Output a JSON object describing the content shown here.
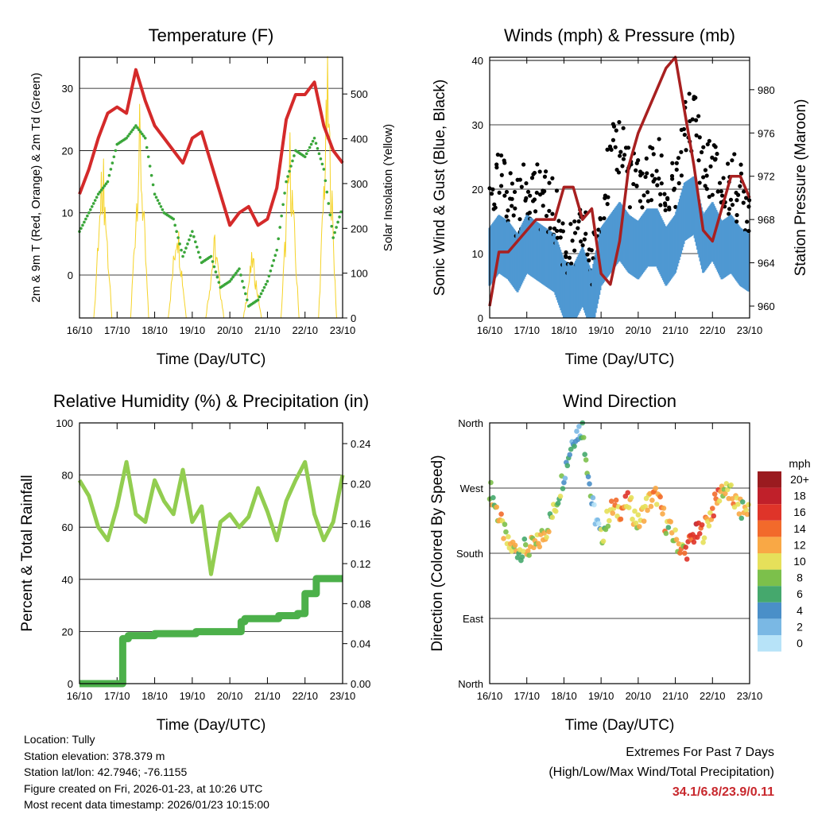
{
  "chart_data": [
    {
      "type": "line",
      "title": "Temperature (F)",
      "xlabel": "Time (Day/UTC)",
      "ylabel": "2m & 9m T (Red, Orange) & 2m Td (Green)",
      "ylabel_right": "Solar Insolation (Yellow)",
      "xticks": [
        "16/10",
        "17/10",
        "18/10",
        "19/10",
        "20/10",
        "21/10",
        "22/10",
        "23/10"
      ],
      "xlim": [
        0,
        7
      ],
      "ylim": [
        -6.9,
        35
      ],
      "yticks": [
        0,
        10,
        20,
        30
      ],
      "ylim_right": [
        0,
        582
      ],
      "yticks_right": [
        0,
        100,
        200,
        300,
        400,
        500
      ],
      "x": [
        0,
        0.25,
        0.5,
        0.75,
        1,
        1.25,
        1.5,
        1.75,
        2,
        2.25,
        2.5,
        2.75,
        3,
        3.25,
        3.5,
        3.75,
        4,
        4.25,
        4.5,
        4.75,
        5,
        5.25,
        5.5,
        5.75,
        6,
        6.25,
        6.5,
        6.75,
        7
      ],
      "series": [
        {
          "name": "Temperature",
          "color": "#d42a2a",
          "values": [
            13,
            17,
            22,
            26,
            27,
            26,
            33,
            28,
            24,
            22,
            20,
            18,
            22,
            23,
            18,
            13,
            8,
            10,
            11,
            8,
            9,
            14,
            25,
            29,
            29,
            31,
            24,
            20,
            18
          ]
        },
        {
          "name": "Dewpoint",
          "color": "#3aa63a",
          "values": [
            7,
            10,
            13,
            15,
            21,
            22,
            24,
            22,
            13,
            10,
            9,
            3,
            7,
            2,
            3,
            -2,
            -1,
            1,
            -5,
            -4,
            -1,
            4,
            15,
            20,
            19,
            22,
            17,
            6,
            11
          ]
        }
      ],
      "solar_peaks": [
        {
          "day": 0.62,
          "value": 400
        },
        {
          "day": 1.6,
          "value": 480
        },
        {
          "day": 2.6,
          "value": 250
        },
        {
          "day": 3.6,
          "value": 200
        },
        {
          "day": 4.6,
          "value": 160
        },
        {
          "day": 5.6,
          "value": 430
        },
        {
          "day": 6.6,
          "value": 590
        }
      ],
      "solar_color": "#f5d328"
    },
    {
      "type": "line",
      "title": "Winds (mph) & Pressure (mb)",
      "xlabel": "Time (Day/UTC)",
      "ylabel": "Sonic Wind & Gust (Blue, Black)",
      "ylabel_right": "Station Pressure (Maroon)",
      "xticks": [
        "16/10",
        "17/10",
        "18/10",
        "19/10",
        "20/10",
        "21/10",
        "22/10",
        "23/10"
      ],
      "xlim": [
        0,
        7
      ],
      "ylim": [
        0,
        40.5
      ],
      "yticks": [
        0,
        10,
        20,
        30,
        40
      ],
      "ylim_right": [
        958.9,
        983
      ],
      "yticks_right": [
        960,
        964,
        968,
        972,
        976,
        980
      ],
      "x": [
        0,
        0.25,
        0.5,
        0.75,
        1,
        1.25,
        1.5,
        1.75,
        2,
        2.25,
        2.5,
        2.75,
        3,
        3.25,
        3.5,
        3.75,
        4,
        4.25,
        4.5,
        4.75,
        5,
        5.25,
        5.5,
        5.75,
        6,
        6.25,
        6.5,
        6.75,
        7
      ],
      "series": [
        {
          "name": "Wind",
          "color": "#4f98d2",
          "values": [
            10,
            12,
            11,
            9,
            12,
            11,
            10,
            9,
            5,
            4,
            7,
            3,
            10,
            12,
            14,
            12,
            11,
            13,
            13,
            10,
            12,
            17,
            18,
            12,
            14,
            11,
            12,
            10,
            9
          ]
        },
        {
          "name": "Gust",
          "color": "#000000",
          "values": [
            19,
            21,
            19,
            17,
            21,
            19,
            18,
            16,
            11,
            10,
            14,
            8,
            18,
            24,
            28,
            22,
            20,
            22,
            23,
            18,
            20,
            30,
            31,
            22,
            24,
            19,
            21,
            19,
            17
          ]
        },
        {
          "name": "Pressure",
          "color": "#a82020",
          "values": [
            960,
            965,
            965,
            966,
            967,
            968,
            968,
            968,
            971,
            971,
            968,
            969,
            963,
            962,
            966,
            973,
            976,
            978,
            980,
            982,
            983,
            978,
            973,
            967,
            966,
            969,
            972,
            972,
            970
          ]
        }
      ]
    },
    {
      "type": "line",
      "title": "Relative Humidity (%) & Precipitation (in)",
      "xlabel": "Time (Day/UTC)",
      "ylabel": "Percent & Total Rainfall",
      "xticks": [
        "16/10",
        "17/10",
        "18/10",
        "19/10",
        "20/10",
        "21/10",
        "22/10",
        "23/10"
      ],
      "xlim": [
        0,
        7
      ],
      "ylim": [
        0,
        100
      ],
      "yticks": [
        0,
        20,
        40,
        60,
        80,
        100
      ],
      "ylim_right": [
        0,
        0.2607
      ],
      "yticks_right": [
        "0.00",
        "0.04",
        "0.08",
        "0.12",
        "0.16",
        "0.20",
        "0.24"
      ],
      "x": [
        0,
        0.25,
        0.5,
        0.75,
        1,
        1.25,
        1.5,
        1.75,
        2,
        2.25,
        2.5,
        2.75,
        3,
        3.25,
        3.5,
        3.75,
        4,
        4.25,
        4.5,
        4.75,
        5,
        5.25,
        5.5,
        5.75,
        6,
        6.25,
        6.5,
        6.75,
        7
      ],
      "series": [
        {
          "name": "Relative Humidity",
          "color": "#92cd50",
          "values": [
            78,
            72,
            60,
            55,
            68,
            85,
            65,
            62,
            78,
            70,
            65,
            82,
            62,
            68,
            42,
            62,
            65,
            60,
            64,
            75,
            66,
            55,
            70,
            78,
            85,
            65,
            55,
            62,
            80
          ]
        }
      ],
      "precip": {
        "color": "#4cb04a",
        "x": [
          0,
          1.1,
          1.15,
          1.3,
          2,
          3.1,
          3.8,
          4.3,
          4.4,
          5.3,
          5.8,
          6.0,
          6.3,
          7
        ],
        "values": [
          0,
          0,
          0.045,
          0.048,
          0.05,
          0.052,
          0.052,
          0.062,
          0.065,
          0.068,
          0.07,
          0.09,
          0.105,
          0.105
        ]
      }
    },
    {
      "type": "scatter",
      "title": "Wind Direction",
      "xlabel": "Time (Day/UTC)",
      "ylabel": "Direction (Colored By Speed)",
      "xticks": [
        "16/10",
        "17/10",
        "18/10",
        "19/10",
        "20/10",
        "21/10",
        "22/10",
        "23/10"
      ],
      "xlim": [
        0,
        7
      ],
      "ylim": [
        0,
        360
      ],
      "yticks": [
        {
          "v": 0,
          "label": "North"
        },
        {
          "v": 90,
          "label": "East"
        },
        {
          "v": 180,
          "label": "South"
        },
        {
          "v": 270,
          "label": "West"
        },
        {
          "v": 360,
          "label": "North"
        }
      ],
      "x": [
        0,
        0.25,
        0.5,
        0.75,
        1,
        1.25,
        1.5,
        1.75,
        2,
        2.25,
        2.5,
        2.75,
        3,
        3.25,
        3.5,
        3.75,
        4,
        4.25,
        4.5,
        4.75,
        5,
        5.25,
        5.5,
        5.75,
        6,
        6.25,
        6.5,
        6.75,
        7
      ],
      "direction": [
        270,
        230,
        190,
        185,
        185,
        190,
        210,
        240,
        290,
        340,
        355,
        250,
        200,
        240,
        240,
        250,
        220,
        250,
        260,
        220,
        200,
        180,
        205,
        210,
        240,
        270,
        260,
        240,
        240
      ],
      "speed": [
        10,
        12,
        11,
        9,
        12,
        11,
        10,
        9,
        5,
        4,
        7,
        3,
        10,
        12,
        14,
        12,
        11,
        13,
        13,
        10,
        12,
        17,
        18,
        12,
        14,
        11,
        12,
        10,
        9
      ],
      "legend": {
        "title": "mph",
        "labels": [
          "20+",
          "18",
          "16",
          "14",
          "12",
          "10",
          "8",
          "6",
          "4",
          "2",
          "0"
        ],
        "colors": [
          "#9a1b1f",
          "#c0202a",
          "#df3429",
          "#f26a2b",
          "#f9a845",
          "#e6e05a",
          "#7cc04b",
          "#45a86d",
          "#4a8fc8",
          "#7ab8e4",
          "#b7e3f8"
        ]
      }
    }
  ],
  "info": {
    "location": "Location: Tully",
    "elevation": "Station elevation: 378.379 m",
    "latlon": "Station lat/lon: 42.7946; -76.1155",
    "created": "Figure created on Fri, 2026-01-23, at 10:26 UTC",
    "timestamp": "Most recent data timestamp: 2026/01/23 10:15:00"
  },
  "extremes": {
    "title": "Extremes For Past 7 Days",
    "subtitle": "(High/Low/Max Wind/Total Precipitation)",
    "values": "34.1/6.8/23.9/0.11"
  }
}
